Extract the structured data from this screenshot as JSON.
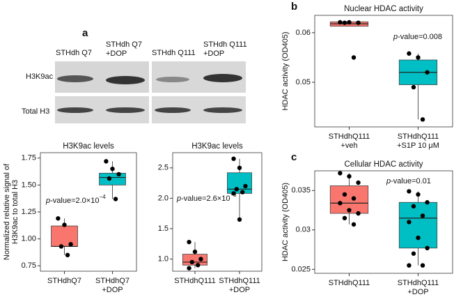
{
  "figure": {
    "letters": [
      "a",
      "b",
      "c"
    ],
    "lanes": [
      [
        "STHdh Q7"
      ],
      [
        "STHdh Q7",
        "+DOP"
      ],
      [
        "STHdh Q111"
      ],
      [
        "STHdh Q111",
        "+DOP"
      ]
    ],
    "rows": [
      "H3K9ac",
      "Total H3"
    ]
  },
  "chart_data": [
    {
      "type": "box",
      "title": "H3K9ac levels",
      "ylabel": [
        "Normalized relative signal of",
        "H3K9ac to total H3"
      ],
      "categories": [
        [
          "STHdhQ7"
        ],
        [
          "STHdhQ7",
          "+DOP"
        ]
      ],
      "ylim": [
        0.7,
        1.8
      ],
      "yticks": [
        0.75,
        {
          "value": 1,
          "label": "1.00"
        },
        1.25,
        {
          "value": 1.5,
          "label": "1.50"
        },
        1.75
      ],
      "annotation": {
        "italic": "p",
        "text": "-value=2.0×10",
        "sup": "−4"
      },
      "boxes": [
        {
          "color": "#f8766d",
          "q1": 0.93,
          "median": 0.93,
          "q3": 1.12,
          "whisker_low": 0.85,
          "whisker_high": 1.19,
          "points": [
            1.19,
            1.13,
            0.95,
            0.93,
            0.85
          ]
        },
        {
          "color": "#00bfc4",
          "q1": 1.5,
          "median": 1.57,
          "q3": 1.61,
          "whisker_low": 1.37,
          "whisker_high": 1.72,
          "points": [
            1.72,
            1.65,
            1.6,
            1.56,
            1.37
          ]
        }
      ]
    },
    {
      "type": "box",
      "title": "H3K9ac levels",
      "categories": [
        [
          "STHdhQ111"
        ],
        [
          "STHdhQ111",
          "+DOP"
        ]
      ],
      "ylim": [
        0.8,
        2.75
      ],
      "yticks": [
        {
          "value": 1,
          "label": "1.0"
        },
        1.5,
        {
          "value": 2,
          "label": "2.0"
        },
        2.5
      ],
      "annotation": {
        "italic": "p",
        "text": "-value=2.6×10",
        "sup": "−5"
      },
      "boxes": [
        {
          "color": "#f8766d",
          "q1": 0.9,
          "median": 0.95,
          "q3": 1.08,
          "whisker_low": 0.85,
          "whisker_high": 1.28,
          "points": [
            1.28,
            1.12,
            1.0,
            0.95,
            0.9,
            0.85
          ]
        },
        {
          "color": "#00bfc4",
          "q1": 2.08,
          "median": 2.15,
          "q3": 2.42,
          "whisker_low": 1.65,
          "whisker_high": 2.65,
          "points": [
            2.65,
            2.5,
            2.2,
            2.15,
            2.1,
            2.08,
            1.65
          ]
        }
      ]
    },
    {
      "type": "box",
      "title": "Nuclear HDAC activity",
      "ylabel": [
        "HDAC activity (OD405)"
      ],
      "categories": [
        [
          "STHdhQ111",
          "+veh"
        ],
        [
          "STHdhQ111",
          "+S1P 10 μM"
        ]
      ],
      "ylim": [
        0.041,
        0.0635
      ],
      "yticks": [
        0.05,
        0.06
      ],
      "annotation": {
        "italic": "p",
        "text": "-value=0.008"
      },
      "boxes": [
        {
          "color": "#f8766d",
          "q1": 0.0613,
          "median": 0.0618,
          "q3": 0.0622,
          "whisker_low": 0.0613,
          "whisker_high": 0.0622,
          "points": [
            0.0621,
            0.0621,
            0.062,
            0.062,
            0.055
          ]
        },
        {
          "color": "#00bfc4",
          "q1": 0.0495,
          "median": 0.052,
          "q3": 0.0545,
          "whisker_low": 0.0425,
          "whisker_high": 0.0558,
          "points": [
            0.0558,
            0.055,
            0.052,
            0.049,
            0.0425
          ]
        }
      ]
    },
    {
      "type": "box",
      "title": "Cellular HDAC activity",
      "ylabel": [
        "HDAC activity (OD405)"
      ],
      "categories": [
        [
          "STHdhQ111"
        ],
        [
          "STHdhQ111",
          "+DOP"
        ]
      ],
      "ylim": [
        0.0245,
        0.0375
      ],
      "yticks": [
        0.025,
        {
          "value": 0.03,
          "label": "0.03"
        },
        0.035
      ],
      "annotation": {
        "italic": "p",
        "text": "-value=0.01"
      },
      "boxes": [
        {
          "color": "#f8766d",
          "q1": 0.0321,
          "median": 0.0334,
          "q3": 0.0356,
          "whisker_low": 0.0307,
          "whisker_high": 0.0372,
          "points": [
            0.0372,
            0.0368,
            0.036,
            0.0345,
            0.034,
            0.0334,
            0.0325,
            0.0321,
            0.0315,
            0.0307
          ]
        },
        {
          "color": "#00bfc4",
          "q1": 0.0277,
          "median": 0.0315,
          "q3": 0.0335,
          "whisker_low": 0.0255,
          "whisker_high": 0.0349,
          "points": [
            0.0349,
            0.0345,
            0.0335,
            0.033,
            0.0318,
            0.031,
            0.029,
            0.0277,
            0.027,
            0.0255,
            0.0255
          ]
        }
      ]
    }
  ]
}
